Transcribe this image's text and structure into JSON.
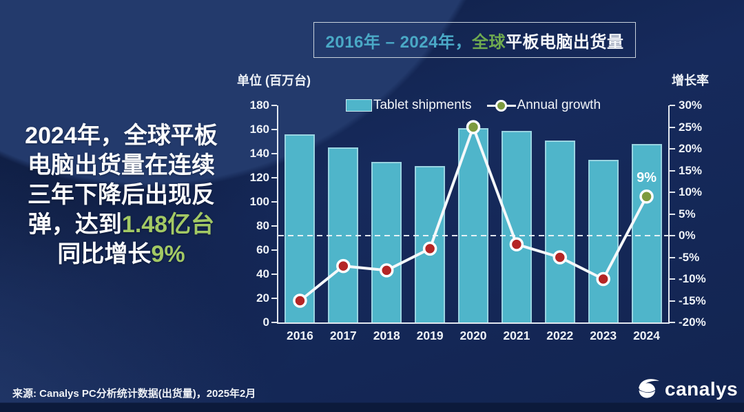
{
  "title": {
    "range": "2016年 – 2024年，",
    "scope": "全球",
    "subject": "平板电脑出货量"
  },
  "callout": {
    "lines": [
      {
        "pre": "2024年，全球平板"
      },
      {
        "pre": "电脑出货量在连续"
      },
      {
        "pre": "三年下降后出现反"
      },
      {
        "pre": "弹，达到",
        "green": "1.48亿台"
      },
      {
        "pre": "同比增长",
        "green": "9%"
      }
    ],
    "highlight_color": "#a3c964"
  },
  "axis_titles": {
    "left": "单位 (百万台)",
    "right": "增长率"
  },
  "chart_data": {
    "type": "bar+line combo",
    "categories": [
      "2016",
      "2017",
      "2018",
      "2019",
      "2020",
      "2021",
      "2022",
      "2023",
      "2024"
    ],
    "series": [
      {
        "name": "Tablet shipments",
        "type": "bar",
        "axis": "left",
        "unit": "million units",
        "values": [
          156,
          145,
          133,
          130,
          161,
          159,
          151,
          135,
          148
        ]
      },
      {
        "name": "Annual growth",
        "type": "line",
        "axis": "right",
        "unit": "%",
        "values": [
          -15,
          -7,
          -8,
          -3,
          25,
          -2,
          -5,
          -10,
          9
        ],
        "point_colors": [
          "#b42525",
          "#b42525",
          "#b42525",
          "#b42525",
          "#7d9b3e",
          "#b42525",
          "#b42525",
          "#b42525",
          "#7d9b3e"
        ]
      }
    ],
    "left_axis": {
      "label": "单位 (百万台)",
      "min": 0,
      "max": 180,
      "step": 20,
      "ticks": [
        "180",
        "160",
        "140",
        "120",
        "100",
        "80",
        "60",
        "40",
        "20",
        "0"
      ]
    },
    "right_axis": {
      "label": "增长率",
      "min": -20,
      "max": 30,
      "step": 5,
      "ticks": [
        "30%",
        "25%",
        "20%",
        "15%",
        "10%",
        "5%",
        "0%",
        "-5%",
        "-10%",
        "-15%",
        "-20%"
      ]
    },
    "zero_line": {
      "value": 0,
      "style": "dashed",
      "color": "#f5f8fb"
    },
    "annotations": [
      {
        "category": "2024",
        "text": "9%",
        "color": "#ffffff"
      }
    ],
    "legend": {
      "position": "top-center"
    },
    "grid": false,
    "colors": {
      "bar": "#4fb5ca",
      "bar_border": "#cdeaf0",
      "line": "#f4f8fa",
      "marker_negative": "#b42525",
      "marker_positive": "#7d9b3e",
      "axis": "#eef2f7",
      "background": "#15295a"
    }
  },
  "footer": {
    "source": "来源: Canalys PC分析统计数据(出货量)，2025年2月"
  },
  "logo": {
    "text": "canalys"
  }
}
